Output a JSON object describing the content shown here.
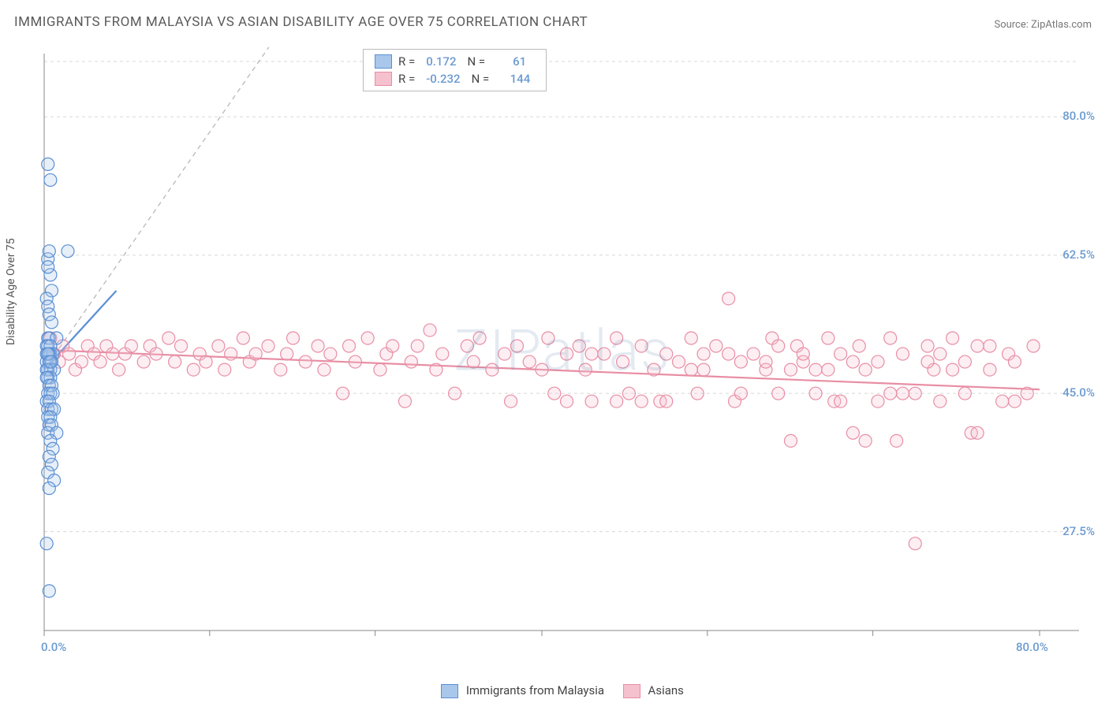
{
  "title": "IMMIGRANTS FROM MALAYSIA VS ASIAN DISABILITY AGE OVER 75 CORRELATION CHART",
  "source": "Source: ZipAtlas.com",
  "y_axis_label": "Disability Age Over 75",
  "watermark": "ZIPatlas",
  "chart": {
    "type": "scatter",
    "xlim": [
      0,
      80
    ],
    "ylim": [
      15,
      88
    ],
    "x_ticks": [
      0,
      13.3,
      26.6,
      40,
      53.3,
      66.6,
      80
    ],
    "x_tick_labels_shown": {
      "0": "0.0%",
      "80": "80.0%"
    },
    "y_ticks": [
      27.5,
      45.0,
      62.5,
      80.0
    ],
    "y_tick_labels": [
      "27.5%",
      "45.0%",
      "62.5%",
      "80.0%"
    ],
    "grid_color": "#d8d8d8",
    "grid_dash": "4,4",
    "axis_color": "#888",
    "background_color": "#ffffff",
    "marker_radius": 8,
    "marker_stroke_width": 1.2,
    "marker_fill_opacity": 0.28,
    "series": [
      {
        "name": "Immigrants from Malaysia",
        "color_stroke": "#5a8fd4",
        "color_fill": "#a9c7eb",
        "R": "0.172",
        "N": "61",
        "trend_line": {
          "x1": 0,
          "y1": 48,
          "x2": 5.8,
          "y2": 58,
          "dash_extend_to": [
            23,
            100
          ]
        },
        "points": [
          [
            0.3,
            74
          ],
          [
            0.5,
            72
          ],
          [
            0.3,
            62
          ],
          [
            0.4,
            63
          ],
          [
            0.5,
            60
          ],
          [
            0.6,
            58
          ],
          [
            0.3,
            61
          ],
          [
            1.9,
            63
          ],
          [
            0.2,
            57
          ],
          [
            0.3,
            56
          ],
          [
            0.4,
            55
          ],
          [
            0.6,
            54
          ],
          [
            0.3,
            52
          ],
          [
            0.4,
            52
          ],
          [
            1.0,
            52
          ],
          [
            0.2,
            51
          ],
          [
            0.3,
            51
          ],
          [
            0.5,
            51
          ],
          [
            0.3,
            50
          ],
          [
            0.5,
            50
          ],
          [
            0.7,
            50
          ],
          [
            0.2,
            50
          ],
          [
            0.4,
            50
          ],
          [
            0.3,
            50
          ],
          [
            0.2,
            49
          ],
          [
            0.4,
            49
          ],
          [
            0.6,
            49
          ],
          [
            0.3,
            48
          ],
          [
            0.5,
            48
          ],
          [
            0.8,
            48
          ],
          [
            0.2,
            48
          ],
          [
            0.3,
            47
          ],
          [
            0.5,
            47
          ],
          [
            0.2,
            47
          ],
          [
            0.4,
            46
          ],
          [
            0.6,
            46
          ],
          [
            0.3,
            45
          ],
          [
            0.5,
            45
          ],
          [
            0.7,
            45
          ],
          [
            0.2,
            44
          ],
          [
            0.4,
            44
          ],
          [
            0.3,
            43
          ],
          [
            0.6,
            43
          ],
          [
            0.8,
            43
          ],
          [
            0.3,
            42
          ],
          [
            0.5,
            42
          ],
          [
            0.4,
            41
          ],
          [
            0.6,
            41
          ],
          [
            0.3,
            40
          ],
          [
            1.0,
            40
          ],
          [
            0.5,
            39
          ],
          [
            0.7,
            38
          ],
          [
            0.4,
            37
          ],
          [
            0.6,
            36
          ],
          [
            0.3,
            35
          ],
          [
            0.8,
            34
          ],
          [
            0.4,
            33
          ],
          [
            0.2,
            26
          ],
          [
            0.4,
            20
          ],
          [
            0.3,
            50
          ],
          [
            0.5,
            49
          ]
        ]
      },
      {
        "name": "Asians",
        "color_stroke": "#e88ea4",
        "color_fill": "#f5c1cf",
        "R": "-0.232",
        "N": "144",
        "trend_line": {
          "x1": 0,
          "y1": 50.5,
          "x2": 80,
          "y2": 45.5
        },
        "points": [
          [
            0.5,
            52
          ],
          [
            0.8,
            50
          ],
          [
            1.2,
            49
          ],
          [
            1.5,
            51
          ],
          [
            2,
            50
          ],
          [
            2.5,
            48
          ],
          [
            3,
            49
          ],
          [
            3.5,
            51
          ],
          [
            4,
            50
          ],
          [
            4.5,
            49
          ],
          [
            5,
            51
          ],
          [
            5.5,
            50
          ],
          [
            6,
            48
          ],
          [
            6.5,
            50
          ],
          [
            7,
            51
          ],
          [
            8,
            49
          ],
          [
            8.5,
            51
          ],
          [
            9,
            50
          ],
          [
            10,
            52
          ],
          [
            10.5,
            49
          ],
          [
            11,
            51
          ],
          [
            12,
            48
          ],
          [
            12.5,
            50
          ],
          [
            13,
            49
          ],
          [
            14,
            51
          ],
          [
            14.5,
            48
          ],
          [
            15,
            50
          ],
          [
            16,
            52
          ],
          [
            16.5,
            49
          ],
          [
            17,
            50
          ],
          [
            18,
            51
          ],
          [
            19,
            48
          ],
          [
            19.5,
            50
          ],
          [
            20,
            52
          ],
          [
            21,
            49
          ],
          [
            22,
            51
          ],
          [
            22.5,
            48
          ],
          [
            23,
            50
          ],
          [
            24,
            45
          ],
          [
            24.5,
            51
          ],
          [
            25,
            49
          ],
          [
            26,
            52
          ],
          [
            27,
            48
          ],
          [
            27.5,
            50
          ],
          [
            28,
            51
          ],
          [
            29,
            44
          ],
          [
            29.5,
            49
          ],
          [
            30,
            51
          ],
          [
            31,
            53
          ],
          [
            31.5,
            48
          ],
          [
            32,
            50
          ],
          [
            33,
            45
          ],
          [
            34,
            51
          ],
          [
            34.5,
            49
          ],
          [
            35,
            52
          ],
          [
            36,
            48
          ],
          [
            37,
            50
          ],
          [
            37.5,
            44
          ],
          [
            38,
            51
          ],
          [
            39,
            49
          ],
          [
            40,
            48
          ],
          [
            40.5,
            52
          ],
          [
            41,
            45
          ],
          [
            42,
            50
          ],
          [
            43,
            51
          ],
          [
            43.5,
            48
          ],
          [
            44,
            44
          ],
          [
            45,
            50
          ],
          [
            46,
            52
          ],
          [
            46.5,
            49
          ],
          [
            47,
            45
          ],
          [
            48,
            51
          ],
          [
            49,
            48
          ],
          [
            49.5,
            44
          ],
          [
            50,
            50
          ],
          [
            51,
            49
          ],
          [
            52,
            52
          ],
          [
            52.5,
            45
          ],
          [
            53,
            48
          ],
          [
            54,
            51
          ],
          [
            55,
            57
          ],
          [
            55.5,
            44
          ],
          [
            56,
            49
          ],
          [
            57,
            50
          ],
          [
            58,
            48
          ],
          [
            58.5,
            52
          ],
          [
            59,
            45
          ],
          [
            60,
            39
          ],
          [
            60.5,
            51
          ],
          [
            61,
            49
          ],
          [
            62,
            48
          ],
          [
            63,
            52
          ],
          [
            63.5,
            44
          ],
          [
            64,
            50
          ],
          [
            65,
            40
          ],
          [
            65.5,
            51
          ],
          [
            66,
            48
          ],
          [
            67,
            49
          ],
          [
            68,
            52
          ],
          [
            68.5,
            39
          ],
          [
            69,
            50
          ],
          [
            70,
            45
          ],
          [
            71,
            51
          ],
          [
            71.5,
            48
          ],
          [
            72,
            44
          ],
          [
            73,
            52
          ],
          [
            74,
            49
          ],
          [
            74.5,
            40
          ],
          [
            75,
            51
          ],
          [
            76,
            48
          ],
          [
            77,
            44
          ],
          [
            77.5,
            50
          ],
          [
            78,
            49
          ],
          [
            79,
            45
          ],
          [
            79.5,
            51
          ],
          [
            70,
            26
          ],
          [
            61,
            50
          ],
          [
            62,
            45
          ],
          [
            50,
            44
          ],
          [
            55,
            50
          ],
          [
            58,
            49
          ],
          [
            64,
            44
          ],
          [
            68,
            45
          ],
          [
            72,
            50
          ],
          [
            76,
            51
          ],
          [
            74,
            45
          ],
          [
            66,
            39
          ],
          [
            69,
            45
          ],
          [
            42,
            44
          ],
          [
            46,
            44
          ],
          [
            53,
            50
          ],
          [
            56,
            45
          ],
          [
            59,
            51
          ],
          [
            63,
            48
          ],
          [
            67,
            44
          ],
          [
            71,
            49
          ],
          [
            75,
            40
          ],
          [
            78,
            44
          ],
          [
            73,
            48
          ],
          [
            65,
            49
          ],
          [
            60,
            48
          ],
          [
            52,
            48
          ],
          [
            48,
            44
          ],
          [
            44,
            50
          ]
        ]
      }
    ]
  },
  "bottom_legend": [
    {
      "label": "Immigrants from Malaysia",
      "stroke": "#5a8fd4",
      "fill": "#a9c7eb"
    },
    {
      "label": "Asians",
      "stroke": "#e88ea4",
      "fill": "#f5c1cf"
    }
  ]
}
